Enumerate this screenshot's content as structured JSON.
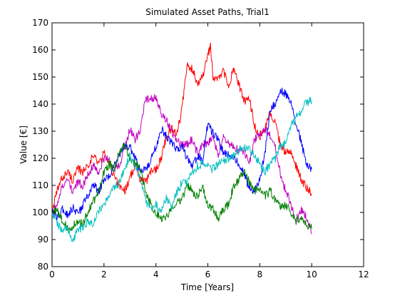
{
  "chart_data": {
    "type": "line",
    "title": "Simulated Asset Paths, Trial1",
    "xlabel": "Time [Years]",
    "ylabel": "Value [€]",
    "xlim": [
      0,
      12
    ],
    "ylim": [
      80,
      170
    ],
    "xticks": [
      0,
      2,
      4,
      6,
      8,
      10,
      12
    ],
    "yticks": [
      80,
      90,
      100,
      110,
      120,
      130,
      140,
      150,
      160,
      170
    ],
    "grid": false,
    "legend": "none",
    "series": [
      {
        "color": "#ff0000",
        "x": [
          0,
          0.2,
          0.4,
          0.6,
          0.8,
          1.0,
          1.2,
          1.4,
          1.6,
          1.8,
          2.0,
          2.2,
          2.4,
          2.6,
          2.8,
          3.0,
          3.2,
          3.4,
          3.6,
          3.8,
          4.0,
          4.2,
          4.4,
          4.6,
          4.8,
          5.0,
          5.2,
          5.4,
          5.6,
          5.8,
          6.0,
          6.1,
          6.2,
          6.4,
          6.6,
          6.8,
          7.0,
          7.2,
          7.4,
          7.6,
          7.8,
          8.0,
          8.2,
          8.4,
          8.6,
          8.8,
          9.0,
          9.2,
          9.4,
          9.6,
          9.8,
          10.0
        ],
        "values": [
          100,
          108,
          113,
          115,
          112,
          116,
          115,
          118,
          121,
          118,
          122,
          118,
          113,
          110,
          108,
          113,
          117,
          112,
          111,
          115,
          116,
          120,
          128,
          131,
          129,
          138,
          154,
          153,
          148,
          150,
          158,
          161,
          150,
          149,
          152,
          147,
          153,
          147,
          141,
          142,
          132,
          128,
          131,
          137,
          133,
          125,
          122,
          123,
          117,
          112,
          109,
          107
        ]
      },
      {
        "color": "#bf00bf",
        "x": [
          0,
          0.2,
          0.4,
          0.6,
          0.8,
          1.0,
          1.2,
          1.4,
          1.6,
          1.8,
          2.0,
          2.2,
          2.4,
          2.6,
          2.8,
          3.0,
          3.2,
          3.4,
          3.6,
          3.8,
          4.0,
          4.2,
          4.4,
          4.6,
          4.8,
          5.0,
          5.2,
          5.4,
          5.6,
          5.8,
          6.0,
          6.2,
          6.4,
          6.6,
          6.8,
          7.0,
          7.2,
          7.4,
          7.6,
          7.8,
          8.0,
          8.2,
          8.4,
          8.6,
          8.8,
          9.0,
          9.2,
          9.4,
          9.6,
          9.8,
          10.0
        ],
        "values": [
          100,
          102,
          110,
          112,
          108,
          111,
          110,
          115,
          117,
          115,
          120,
          119,
          116,
          118,
          124,
          131,
          127,
          130,
          142,
          142,
          143,
          137,
          134,
          130,
          127,
          125,
          125,
          127,
          122,
          125,
          126,
          127,
          121,
          128,
          125,
          124,
          123,
          122,
          118,
          127,
          129,
          131,
          128,
          124,
          114,
          108,
          103,
          97,
          101,
          98,
          92
        ]
      },
      {
        "color": "#0000ff",
        "x": [
          0,
          0.2,
          0.4,
          0.6,
          0.8,
          1.0,
          1.2,
          1.4,
          1.6,
          1.8,
          2.0,
          2.2,
          2.4,
          2.6,
          2.8,
          3.0,
          3.2,
          3.4,
          3.6,
          3.8,
          4.0,
          4.2,
          4.4,
          4.6,
          4.8,
          5.0,
          5.2,
          5.4,
          5.6,
          5.8,
          6.0,
          6.2,
          6.4,
          6.6,
          6.8,
          7.0,
          7.2,
          7.4,
          7.6,
          7.8,
          8.0,
          8.2,
          8.4,
          8.6,
          8.8,
          9.0,
          9.2,
          9.4,
          9.6,
          9.8,
          10.0
        ],
        "values": [
          100,
          98,
          101,
          99,
          102,
          99,
          103,
          107,
          110,
          108,
          112,
          113,
          118,
          121,
          125,
          124,
          120,
          115,
          116,
          119,
          124,
          131,
          128,
          126,
          123,
          125,
          120,
          117,
          121,
          119,
          133,
          129,
          127,
          122,
          121,
          120,
          118,
          114,
          109,
          108,
          112,
          122,
          138,
          140,
          145,
          144,
          140,
          132,
          126,
          117,
          116
        ]
      },
      {
        "color": "#008000",
        "x": [
          0,
          0.2,
          0.4,
          0.6,
          0.8,
          1.0,
          1.2,
          1.4,
          1.6,
          1.8,
          2.0,
          2.2,
          2.4,
          2.6,
          2.8,
          3.0,
          3.2,
          3.4,
          3.6,
          3.8,
          4.0,
          4.2,
          4.4,
          4.6,
          4.8,
          5.0,
          5.2,
          5.4,
          5.6,
          5.8,
          6.0,
          6.2,
          6.4,
          6.6,
          6.8,
          7.0,
          7.2,
          7.4,
          7.6,
          7.8,
          8.0,
          8.2,
          8.4,
          8.6,
          8.8,
          9.0,
          9.2,
          9.4,
          9.6,
          9.8,
          10.0
        ],
        "values": [
          100,
          101,
          97,
          94,
          95,
          96,
          96,
          101,
          104,
          108,
          115,
          118,
          116,
          123,
          125,
          120,
          118,
          116,
          108,
          103,
          100,
          98,
          98,
          102,
          104,
          105,
          110,
          108,
          106,
          109,
          103,
          101,
          98,
          101,
          103,
          110,
          112,
          115,
          111,
          108,
          109,
          106,
          108,
          105,
          102,
          103,
          100,
          97,
          98,
          95,
          94
        ]
      },
      {
        "color": "#00bfbf",
        "x": [
          0,
          0.2,
          0.4,
          0.6,
          0.8,
          1.0,
          1.2,
          1.4,
          1.6,
          1.8,
          2.0,
          2.2,
          2.4,
          2.6,
          2.8,
          3.0,
          3.2,
          3.4,
          3.6,
          3.8,
          4.0,
          4.2,
          4.4,
          4.6,
          4.8,
          5.0,
          5.2,
          5.4,
          5.6,
          5.8,
          6.0,
          6.2,
          6.4,
          6.6,
          6.8,
          7.0,
          7.2,
          7.4,
          7.6,
          7.8,
          8.0,
          8.2,
          8.4,
          8.6,
          8.8,
          9.0,
          9.2,
          9.4,
          9.6,
          9.8,
          10.0
        ],
        "values": [
          100,
          96,
          93,
          94,
          90,
          93,
          95,
          97,
          96,
          101,
          103,
          106,
          109,
          111,
          116,
          121,
          117,
          113,
          104,
          101,
          103,
          101,
          105,
          102,
          107,
          111,
          111,
          115,
          117,
          118,
          117,
          116,
          118,
          119,
          120,
          121,
          123,
          124,
          123,
          121,
          118,
          115,
          118,
          120,
          125,
          126,
          132,
          135,
          137,
          141,
          141
        ]
      }
    ]
  }
}
